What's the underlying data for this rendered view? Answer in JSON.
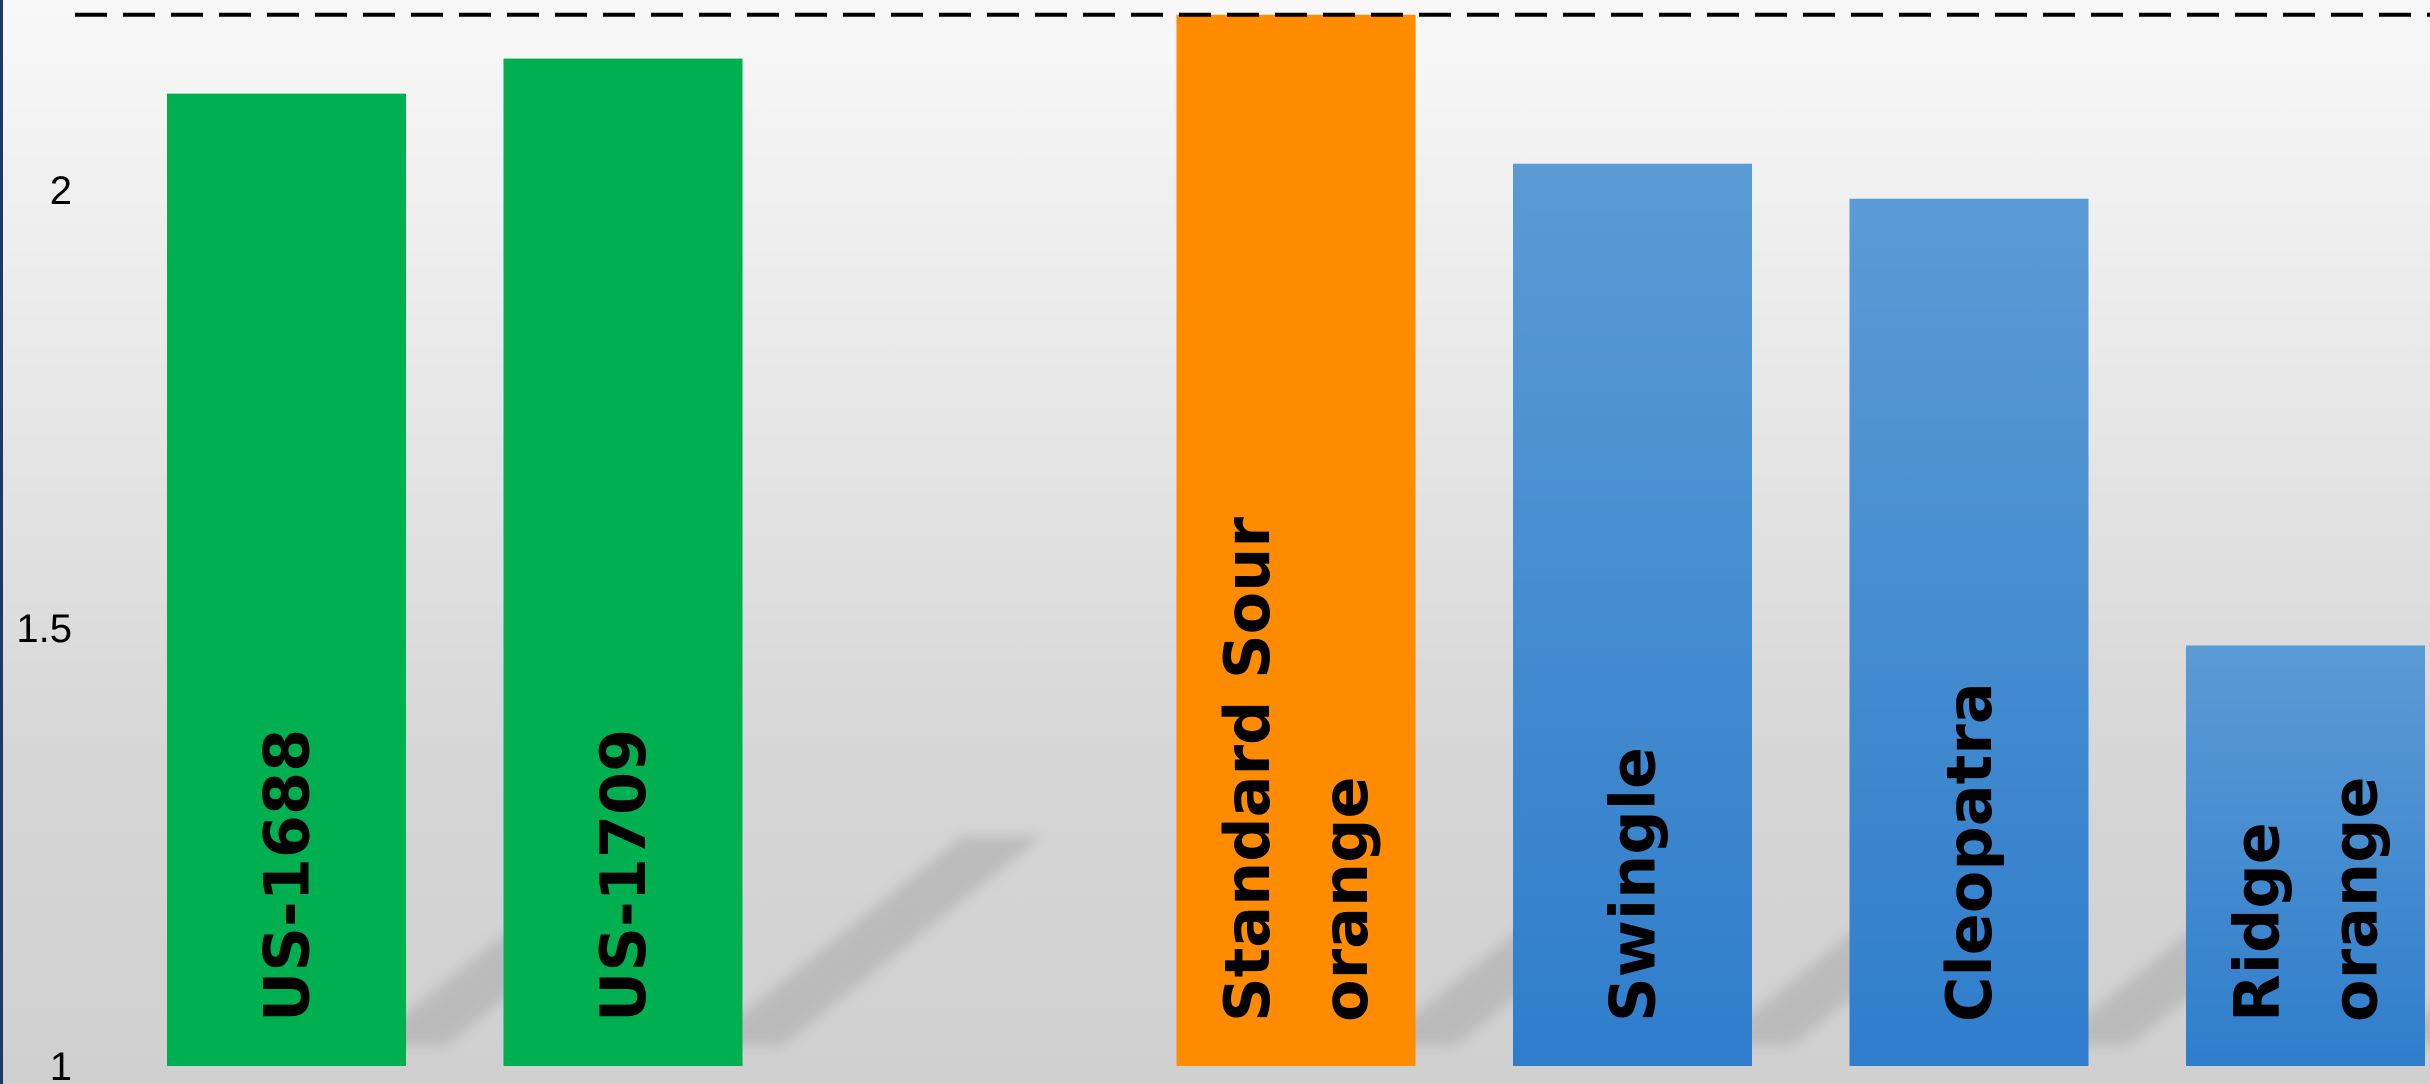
{
  "colors": {
    "green": "#00b050",
    "orange": "#ff8c00",
    "blue_top": "#5b9bd5",
    "blue_bottom": "#2f7dcb",
    "reference_line": "#000000"
  },
  "chart_data": {
    "type": "bar",
    "title": "",
    "xlabel": "",
    "ylabel": "",
    "ylim": [
      1,
      2.2
    ],
    "yticks": [
      "1",
      "1.5",
      "2"
    ],
    "reference_line": {
      "value": 2.2,
      "style": "dashed"
    },
    "categories": [
      "US-1688",
      "US-1709",
      "",
      "Standard Sour orange",
      "Swingle",
      "Cleopatra",
      "Ridge orange"
    ],
    "bars": [
      {
        "label_lines": [
          "US-1688"
        ],
        "value": 2.11,
        "color": "green"
      },
      {
        "label_lines": [
          "US-1709"
        ],
        "value": 2.15,
        "color": "green"
      },
      {
        "label_lines": [],
        "value": null,
        "color": "none"
      },
      {
        "label_lines": [
          "Standard Sour",
          "orange"
        ],
        "value": 2.2,
        "color": "orange"
      },
      {
        "label_lines": [
          "Swingle"
        ],
        "value": 2.03,
        "color": "blue"
      },
      {
        "label_lines": [
          "Cleopatra"
        ],
        "value": 1.99,
        "color": "blue"
      },
      {
        "label_lines": [
          "Ridge",
          "orange"
        ],
        "value": 1.48,
        "color": "blue"
      }
    ],
    "grid": false,
    "legend": "none"
  }
}
